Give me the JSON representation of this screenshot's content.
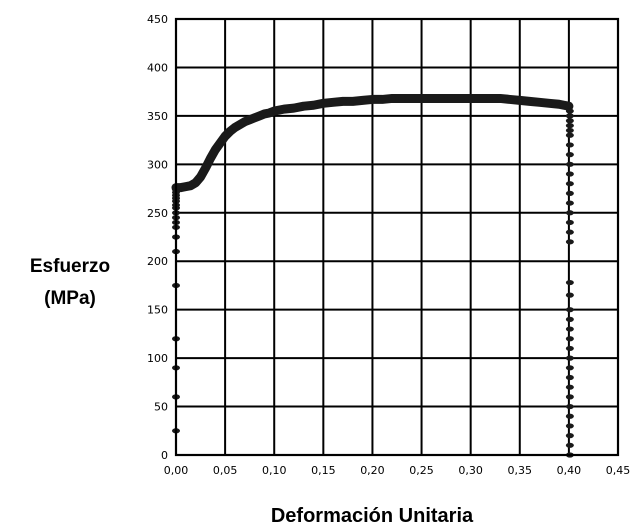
{
  "chart_data": {
    "type": "scatter",
    "title": "",
    "xlabel": "Deformación Unitaria",
    "ylabel_lines": [
      "Esfuerzo",
      "(MPa)"
    ],
    "xlim": [
      0,
      0.45
    ],
    "ylim": [
      0,
      450
    ],
    "x_ticks": [
      "0,00",
      "0,05",
      "0,10",
      "0,15",
      "0,20",
      "0,25",
      "0,30",
      "0,35",
      "0,40",
      "0,45"
    ],
    "y_ticks": [
      "0",
      "50",
      "100",
      "150",
      "200",
      "250",
      "300",
      "350",
      "400",
      "450"
    ],
    "grid": true,
    "legend": "none",
    "series": [
      {
        "color": "#1a1a1a",
        "x": [
          0.0,
          0.0,
          0.0,
          0.0,
          0.0,
          0.0,
          0.0,
          0.0,
          0.0,
          0.0,
          0.0,
          0.0,
          0.0,
          0.0,
          0.0,
          0.0,
          0.0,
          0.0,
          0.0,
          0.005,
          0.01,
          0.015,
          0.02,
          0.025,
          0.03,
          0.035,
          0.04,
          0.045,
          0.05,
          0.055,
          0.06,
          0.065,
          0.07,
          0.075,
          0.08,
          0.085,
          0.09,
          0.095,
          0.1,
          0.11,
          0.12,
          0.13,
          0.14,
          0.15,
          0.16,
          0.17,
          0.18,
          0.19,
          0.2,
          0.21,
          0.22,
          0.23,
          0.24,
          0.25,
          0.26,
          0.27,
          0.28,
          0.29,
          0.3,
          0.31,
          0.32,
          0.33,
          0.34,
          0.35,
          0.36,
          0.37,
          0.38,
          0.39,
          0.395,
          0.4,
          0.401,
          0.401,
          0.401,
          0.401,
          0.401,
          0.401,
          0.401,
          0.401,
          0.401,
          0.401,
          0.401,
          0.401,
          0.401,
          0.401,
          0.401,
          0.401,
          0.401,
          0.401,
          0.401,
          0.401,
          0.401,
          0.401,
          0.401,
          0.401,
          0.401,
          0.401,
          0.401,
          0.401,
          0.401,
          0.401,
          0.401,
          0.401,
          0.401,
          0.401,
          0.401
        ],
        "y": [
          25,
          60,
          90,
          120,
          175,
          210,
          225,
          235,
          240,
          245,
          250,
          255,
          258,
          262,
          265,
          268,
          271,
          274,
          276,
          276,
          277,
          278,
          281,
          287,
          296,
          306,
          315,
          322,
          329,
          334,
          338,
          341,
          344,
          346,
          348,
          350,
          352,
          353,
          355,
          357,
          358,
          360,
          361,
          363,
          364,
          365,
          365,
          366,
          367,
          367,
          368,
          368,
          368,
          368,
          368,
          368,
          368,
          368,
          368,
          368,
          368,
          368,
          367,
          366,
          365,
          364,
          363,
          362,
          361,
          360,
          355,
          350,
          345,
          340,
          335,
          330,
          320,
          310,
          300,
          290,
          280,
          270,
          260,
          250,
          240,
          230,
          220,
          178,
          165,
          150,
          140,
          130,
          120,
          110,
          100,
          90,
          80,
          70,
          60,
          50,
          40,
          30,
          20,
          10,
          0
        ]
      }
    ]
  }
}
